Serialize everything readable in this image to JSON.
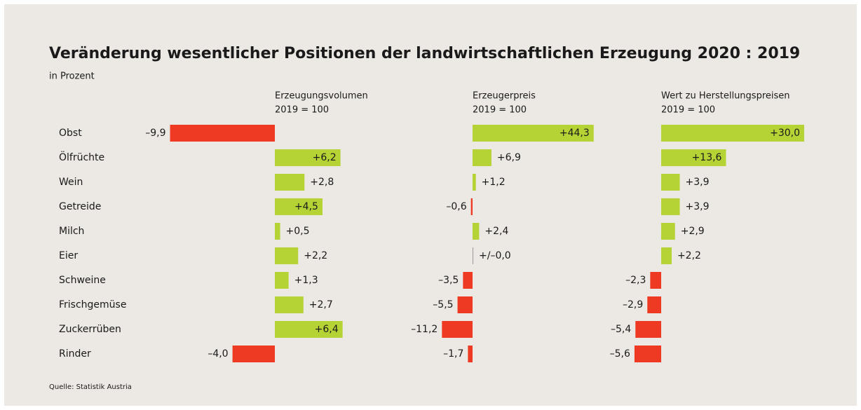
{
  "title": "Veränderung wesentlicher Positionen der landwirtschaftlichen Erzeugung 2020 : 2019",
  "subtitle": "in Prozent",
  "source": "Quelle: Statistik Austria",
  "categories": [
    "Obst",
    "Ölfrüchte",
    "Wein",
    "Getreide",
    "Milch",
    "Eier",
    "Schweine",
    "Frischgemüse",
    "Zuckerrüben",
    "Rinder"
  ],
  "chart_data": [
    {
      "type": "bar",
      "orientation": "horizontal",
      "title": "Erzeugungsvolumen",
      "subtitle": "2019 = 100",
      "positive_color": "#b5d334",
      "negative_color": "#ee3a23",
      "values": [
        -9.9,
        6.2,
        2.8,
        4.5,
        0.5,
        2.2,
        1.3,
        2.7,
        6.4,
        -4.0
      ],
      "value_labels": [
        "–9,9",
        "+6,2",
        "+2,8",
        "+4,5",
        "+0,5",
        "+2,2",
        "+1,3",
        "+2,7",
        "+6,4",
        "–4,0"
      ]
    },
    {
      "type": "bar",
      "orientation": "horizontal",
      "title": "Erzeugerpreis",
      "subtitle": "2019 = 100",
      "positive_color": "#b5d334",
      "negative_color": "#ee3a23",
      "values": [
        44.3,
        6.9,
        1.2,
        -0.6,
        2.4,
        0.0,
        -3.5,
        -5.5,
        -11.2,
        -1.7
      ],
      "value_labels": [
        "+44,3",
        "+6,9",
        "+1,2",
        "–0,6",
        "+2,4",
        "+/–0,0",
        "–3,5",
        "–5,5",
        "–11,2",
        "–1,7"
      ]
    },
    {
      "type": "bar",
      "orientation": "horizontal",
      "title": "Wert zu Herstellungspreisen",
      "subtitle": "2019 = 100",
      "positive_color": "#b5d334",
      "negative_color": "#ee3a23",
      "values": [
        30.0,
        13.6,
        3.9,
        3.9,
        2.9,
        2.2,
        -2.3,
        -2.9,
        -5.4,
        -5.6
      ],
      "value_labels": [
        "+30,0",
        "+13,6",
        "+3,9",
        "+3,9",
        "+2,9",
        "+2,2",
        "–2,3",
        "–2,9",
        "–5,4",
        "–5,6"
      ]
    }
  ]
}
